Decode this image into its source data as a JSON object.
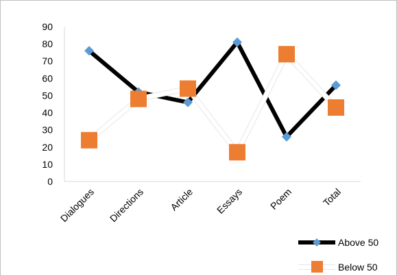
{
  "chart_data": {
    "type": "line",
    "title": "",
    "xlabel": "",
    "ylabel": "",
    "categories": [
      "Dialogues",
      "Directions",
      "Article",
      "Essays",
      "Poem",
      "Total"
    ],
    "ylim": [
      0,
      90
    ],
    "yticks": [
      "0",
      "10",
      "20",
      "30",
      "40",
      "50",
      "60",
      "70",
      "80",
      "90"
    ],
    "grid": false,
    "legend_position": "bottom-right",
    "series": [
      {
        "name": "Above 50",
        "values": [
          76,
          52,
          46,
          81,
          26,
          56
        ],
        "line_color": "#000000",
        "marker": "diamond",
        "marker_color": "#5B9BD5"
      },
      {
        "name": "Below 50",
        "values": [
          24,
          48,
          54,
          17,
          74,
          43
        ],
        "line_color": "#ffffff",
        "marker": "square",
        "marker_color": "#ED7D31"
      }
    ]
  }
}
